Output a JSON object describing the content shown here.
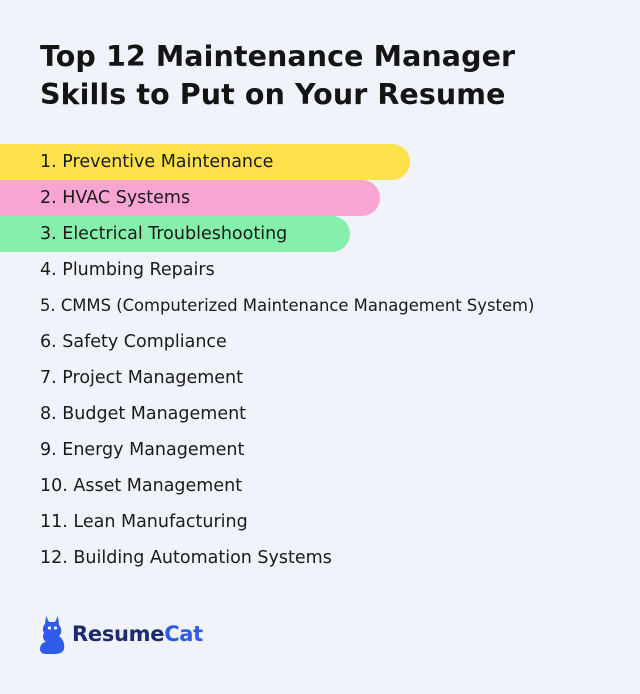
{
  "title_line1": "Top 12 Maintenance Manager",
  "title_line2": "Skills to Put on Your Resume",
  "skills": [
    "1. Preventive Maintenance",
    "2. HVAC Systems",
    "3. Electrical Troubleshooting",
    "4. Plumbing Repairs",
    "5. CMMS (Computerized Maintenance Management System)",
    "6. Safety Compliance",
    "7. Project Management",
    "8. Budget Management",
    "9. Energy Management",
    "10. Asset Management",
    "11. Lean Manufacturing",
    "12. Building Automation Systems"
  ],
  "highlight_colors": [
    "#ffe14d",
    "#f8a5d3",
    "#86efac"
  ],
  "brand": {
    "logo_icon": "cat-icon",
    "name_part1": "Resume",
    "name_part2": "Cat"
  }
}
